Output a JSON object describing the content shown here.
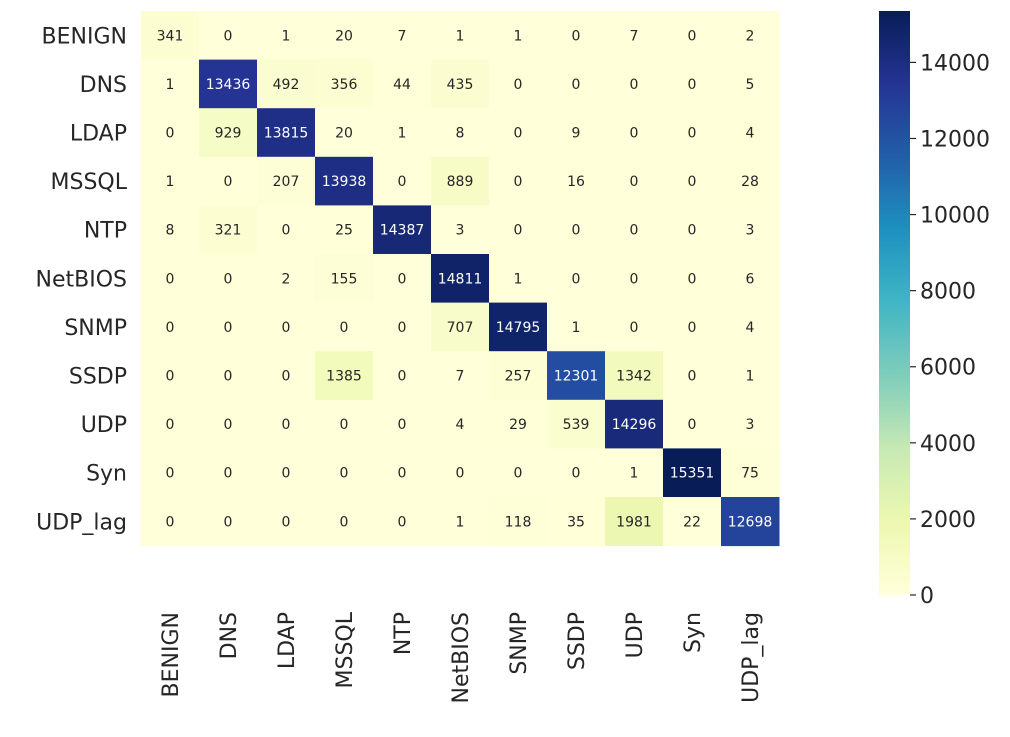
{
  "chart_data": {
    "type": "heatmap",
    "title": "",
    "xlabel": "",
    "ylabel": "",
    "row_labels": [
      "BENIGN",
      "DNS",
      "LDAP",
      "MSSQL",
      "NTP",
      "NetBIOS",
      "SNMP",
      "SSDP",
      "UDP",
      "Syn",
      "UDP_lag"
    ],
    "col_labels": [
      "BENIGN",
      "DNS",
      "LDAP",
      "MSSQL",
      "NTP",
      "NetBIOS",
      "SNMP",
      "SSDP",
      "UDP",
      "Syn",
      "UDP_lag"
    ],
    "values": [
      [
        341,
        0,
        1,
        20,
        7,
        1,
        1,
        0,
        7,
        0,
        2
      ],
      [
        1,
        13436,
        492,
        356,
        44,
        435,
        0,
        0,
        0,
        0,
        5
      ],
      [
        0,
        929,
        13815,
        20,
        1,
        8,
        0,
        9,
        0,
        0,
        4
      ],
      [
        1,
        0,
        207,
        13938,
        0,
        889,
        0,
        16,
        0,
        0,
        28
      ],
      [
        8,
        321,
        0,
        25,
        14387,
        3,
        0,
        0,
        0,
        0,
        3
      ],
      [
        0,
        0,
        2,
        155,
        0,
        14811,
        1,
        0,
        0,
        0,
        6
      ],
      [
        0,
        0,
        0,
        0,
        0,
        707,
        14795,
        1,
        0,
        0,
        4
      ],
      [
        0,
        0,
        0,
        1385,
        0,
        7,
        257,
        12301,
        1342,
        0,
        1
      ],
      [
        0,
        0,
        0,
        0,
        0,
        4,
        29,
        539,
        14296,
        0,
        3
      ],
      [
        0,
        0,
        0,
        0,
        0,
        0,
        0,
        0,
        1,
        15351,
        75
      ],
      [
        0,
        0,
        0,
        0,
        0,
        1,
        118,
        35,
        1981,
        22,
        12698
      ]
    ],
    "colorbar": {
      "range": [
        0,
        15351
      ],
      "ticks": [
        0,
        2000,
        4000,
        6000,
        8000,
        10000,
        12000,
        14000
      ],
      "colormap": "YlGnBu",
      "stops": [
        "#ffffd9",
        "#edf8b1",
        "#c7e9b4",
        "#7fcdbb",
        "#41b6c4",
        "#1d91c0",
        "#225ea8",
        "#253494",
        "#081d58"
      ]
    },
    "grid": false
  }
}
